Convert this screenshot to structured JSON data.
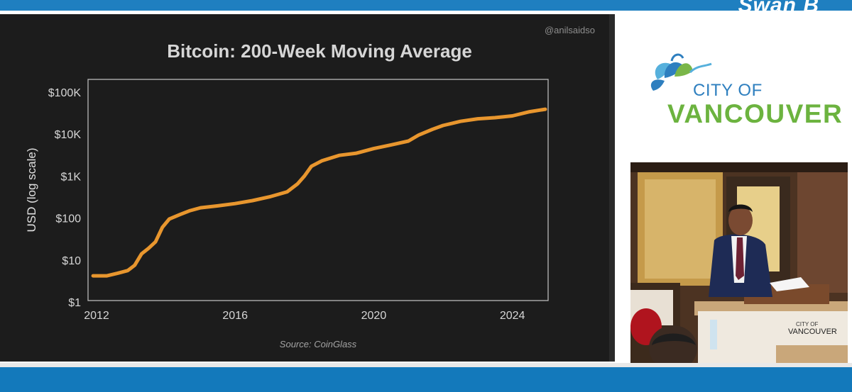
{
  "overlay": {
    "brand": "Swan B"
  },
  "slide": {
    "credit": "@anilsaidso",
    "source": "Source: CoinGlass"
  },
  "chart_data": {
    "type": "line",
    "title": "Bitcoin: 200-Week Moving Average",
    "xlabel": "",
    "ylabel": "USD (log scale)",
    "yscale": "log",
    "xlim": [
      2011.9,
      2024.95
    ],
    "ylim": [
      1,
      200000
    ],
    "x_ticks": [
      2012,
      2016,
      2020,
      2024
    ],
    "y_ticks": [
      {
        "value": 1,
        "label": "$1"
      },
      {
        "value": 10,
        "label": "$10"
      },
      {
        "value": 100,
        "label": "$100"
      },
      {
        "value": 1000,
        "label": "$1K"
      },
      {
        "value": 10000,
        "label": "$10K"
      },
      {
        "value": 100000,
        "label": "$100K"
      }
    ],
    "grid": false,
    "line_color": "#e8962e",
    "series": [
      {
        "name": "",
        "points": [
          [
            2011.9,
            4.2
          ],
          [
            2012.3,
            4.2
          ],
          [
            2012.6,
            4.8
          ],
          [
            2012.9,
            5.6
          ],
          [
            2013.1,
            7.5
          ],
          [
            2013.3,
            14
          ],
          [
            2013.5,
            19
          ],
          [
            2013.7,
            27
          ],
          [
            2013.9,
            60
          ],
          [
            2014.1,
            95
          ],
          [
            2014.4,
            120
          ],
          [
            2014.7,
            150
          ],
          [
            2015.0,
            175
          ],
          [
            2015.5,
            195
          ],
          [
            2016.0,
            220
          ],
          [
            2016.5,
            260
          ],
          [
            2017.0,
            320
          ],
          [
            2017.5,
            420
          ],
          [
            2017.8,
            650
          ],
          [
            2018.0,
            1000
          ],
          [
            2018.2,
            1700
          ],
          [
            2018.5,
            2300
          ],
          [
            2019.0,
            3100
          ],
          [
            2019.5,
            3500
          ],
          [
            2020.0,
            4500
          ],
          [
            2020.5,
            5500
          ],
          [
            2021.0,
            6800
          ],
          [
            2021.3,
            9500
          ],
          [
            2021.7,
            13000
          ],
          [
            2022.0,
            16000
          ],
          [
            2022.5,
            20000
          ],
          [
            2023.0,
            23000
          ],
          [
            2023.5,
            24500
          ],
          [
            2024.0,
            27000
          ],
          [
            2024.5,
            34000
          ],
          [
            2024.95,
            39000
          ]
        ]
      }
    ]
  },
  "sidebar": {
    "logo_city": "CITY OF",
    "logo_name": "VANCOUVER",
    "podium_city": "CITY OF",
    "podium_name": "VANCOUVER"
  }
}
